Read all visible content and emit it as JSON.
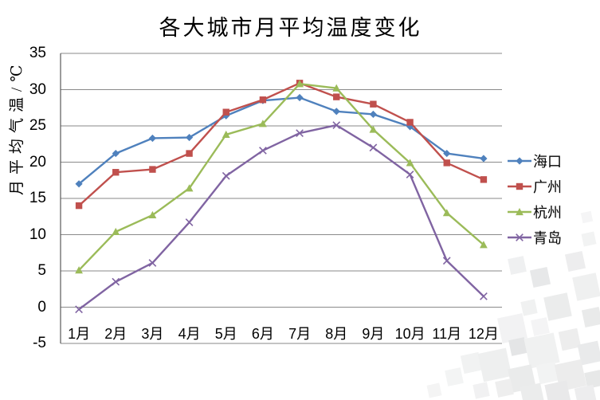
{
  "chart_data": {
    "type": "line",
    "title": "各大城市月平均温度变化",
    "ylabel": "月平均气温/℃",
    "xlabel": "",
    "ylim": [
      -5,
      35
    ],
    "ytick_step": 5,
    "grid": true,
    "legend_position": "right",
    "categories": [
      "1月",
      "2月",
      "3月",
      "4月",
      "5月",
      "6月",
      "7月",
      "8月",
      "9月",
      "10月",
      "11月",
      "12月"
    ],
    "series": [
      {
        "name": "海口",
        "color": "#4F81BD",
        "marker": "diamond",
        "values": [
          17,
          21.2,
          23.3,
          23.4,
          26.4,
          28.5,
          28.9,
          27,
          26.6,
          24.9,
          21.2,
          20.5
        ]
      },
      {
        "name": "广州",
        "color": "#C0504D",
        "marker": "square",
        "values": [
          14,
          18.6,
          19,
          21.2,
          26.9,
          28.6,
          30.9,
          29,
          28,
          25.5,
          19.9,
          17.6
        ]
      },
      {
        "name": "杭州",
        "color": "#9BBB59",
        "marker": "triangle",
        "values": [
          5.1,
          10.4,
          12.7,
          16.4,
          23.8,
          25.3,
          30.8,
          30.2,
          24.5,
          19.9,
          13,
          8.6
        ]
      },
      {
        "name": "青岛",
        "color": "#8064A2",
        "marker": "x",
        "values": [
          -0.3,
          3.5,
          6.1,
          11.7,
          18.1,
          21.6,
          24,
          25.1,
          22,
          18.3,
          6.4,
          1.5
        ]
      }
    ]
  }
}
